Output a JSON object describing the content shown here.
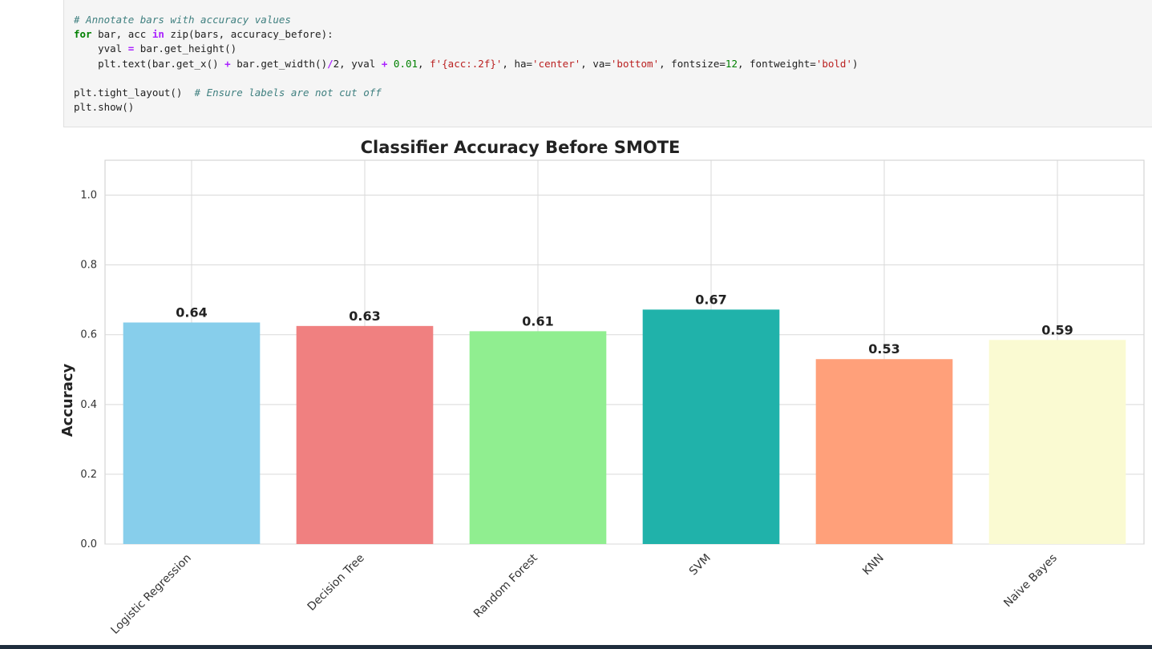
{
  "code_cell": {
    "lines": [
      [
        {
          "t": "# Annotate bars with accuracy values",
          "c": "cm"
        }
      ],
      [
        {
          "t": "for",
          "c": "kw"
        },
        {
          "t": " bar, acc ",
          "c": "pl"
        },
        {
          "t": "in",
          "c": "op"
        },
        {
          "t": " zip(bars, accuracy_before):",
          "c": "pl"
        }
      ],
      [
        {
          "t": "    yval ",
          "c": "pl"
        },
        {
          "t": "=",
          "c": "op"
        },
        {
          "t": " bar.get_height()",
          "c": "pl"
        }
      ],
      [
        {
          "t": "    plt.text(bar.get_x() ",
          "c": "pl"
        },
        {
          "t": "+",
          "c": "op"
        },
        {
          "t": " bar.get_width()",
          "c": "pl"
        },
        {
          "t": "/",
          "c": "op"
        },
        {
          "t": "2, yval ",
          "c": "pl"
        },
        {
          "t": "+",
          "c": "op"
        },
        {
          "t": " ",
          "c": "pl"
        },
        {
          "t": "0.01",
          "c": "nu"
        },
        {
          "t": ", ",
          "c": "pl"
        },
        {
          "t": "f'{acc:.2f}'",
          "c": "st"
        },
        {
          "t": ", ha=",
          "c": "pl"
        },
        {
          "t": "'center'",
          "c": "st"
        },
        {
          "t": ", va=",
          "c": "pl"
        },
        {
          "t": "'bottom'",
          "c": "st"
        },
        {
          "t": ", fontsize=",
          "c": "pl"
        },
        {
          "t": "12",
          "c": "nu"
        },
        {
          "t": ", fontweight=",
          "c": "pl"
        },
        {
          "t": "'bold'",
          "c": "st"
        },
        {
          "t": ")",
          "c": "pl"
        }
      ],
      [
        {
          "t": "",
          "c": "pl"
        }
      ],
      [
        {
          "t": "plt.tight_layout()  ",
          "c": "pl"
        },
        {
          "t": "# Ensure labels are not cut off",
          "c": "cm"
        }
      ],
      [
        {
          "t": "plt.show()",
          "c": "pl"
        }
      ]
    ]
  },
  "chart_data": {
    "type": "bar",
    "title": "Classifier Accuracy Before SMOTE",
    "xlabel": "",
    "ylabel": "Accuracy",
    "ylim": [
      0,
      1.1
    ],
    "yticks": [
      "0.0",
      "0.2",
      "0.4",
      "0.6",
      "0.8",
      "1.0"
    ],
    "grid": true,
    "categories": [
      "Logistic Regression",
      "Decision Tree",
      "Random Forest",
      "SVM",
      "KNN",
      "Naive Bayes"
    ],
    "values": [
      0.635,
      0.625,
      0.61,
      0.672,
      0.53,
      0.585
    ],
    "labels": [
      "0.64",
      "0.63",
      "0.61",
      "0.67",
      "0.53",
      "0.59"
    ],
    "colors": [
      "#87ceeb",
      "#f08080",
      "#90ee90",
      "#20b2aa",
      "#ffa07a",
      "#fafad2"
    ]
  }
}
